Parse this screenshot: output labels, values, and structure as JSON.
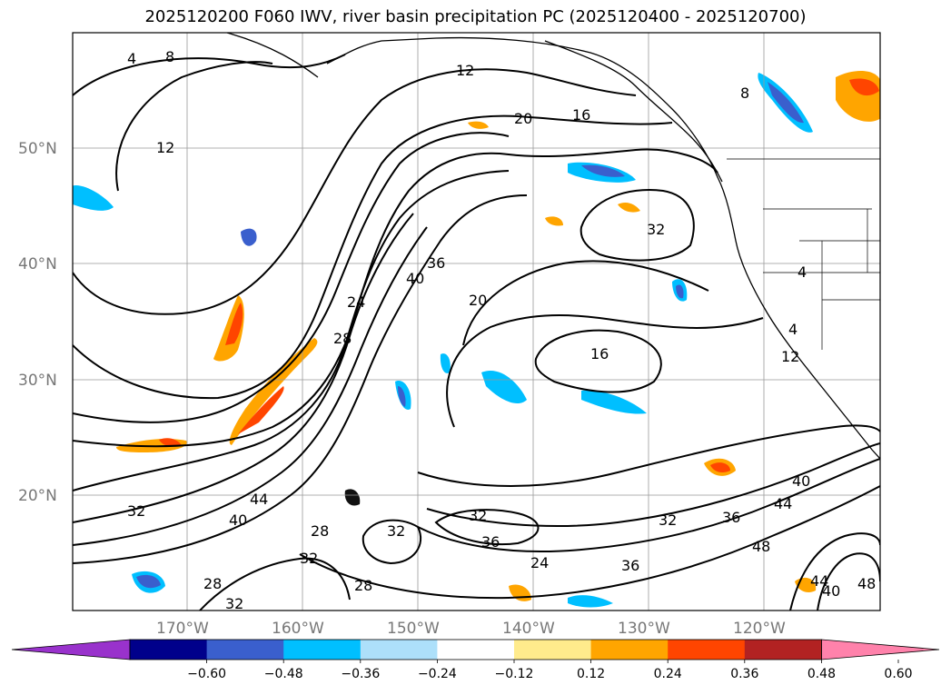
{
  "title": "2025120200 F060 IWV, river basin precipitation PC (2025120400 - 2025120700)",
  "map": {
    "lat_labels": [
      "50°N",
      "40°N",
      "30°N",
      "20°N"
    ],
    "lon_labels": [
      "170°W",
      "160°W",
      "150°W",
      "140°W",
      "130°W",
      "120°W"
    ],
    "contour_labels": [
      "4",
      "8",
      "12",
      "12",
      "20",
      "16",
      "32",
      "36",
      "40",
      "24",
      "28",
      "20",
      "16",
      "32",
      "36",
      "32",
      "28",
      "32",
      "28",
      "44",
      "40",
      "32",
      "28",
      "32",
      "36",
      "24",
      "36",
      "48",
      "44",
      "40",
      "32",
      "48",
      "40",
      "44",
      "4",
      "8",
      "12",
      "4"
    ],
    "colors": {
      "contour": "#000000",
      "land_outline": "#000000",
      "grid": "#999999"
    }
  },
  "colorbar": {
    "tick_labels": [
      "−0.60",
      "−0.48",
      "−0.36",
      "−0.24",
      "−0.12",
      "0.12",
      "0.24",
      "0.36",
      "0.48",
      "0.60"
    ],
    "segment_colors": [
      "#9932CC",
      "#00008B",
      "#3A5FCD",
      "#00BFFF",
      "#ADE0FA",
      "#FFFFFF",
      "#FFEB8C",
      "#FFA500",
      "#FF4500",
      "#B22222",
      "#FF82AB"
    ],
    "extend_min_color": "#9932CC",
    "extend_max_color": "#FF82AB"
  }
}
